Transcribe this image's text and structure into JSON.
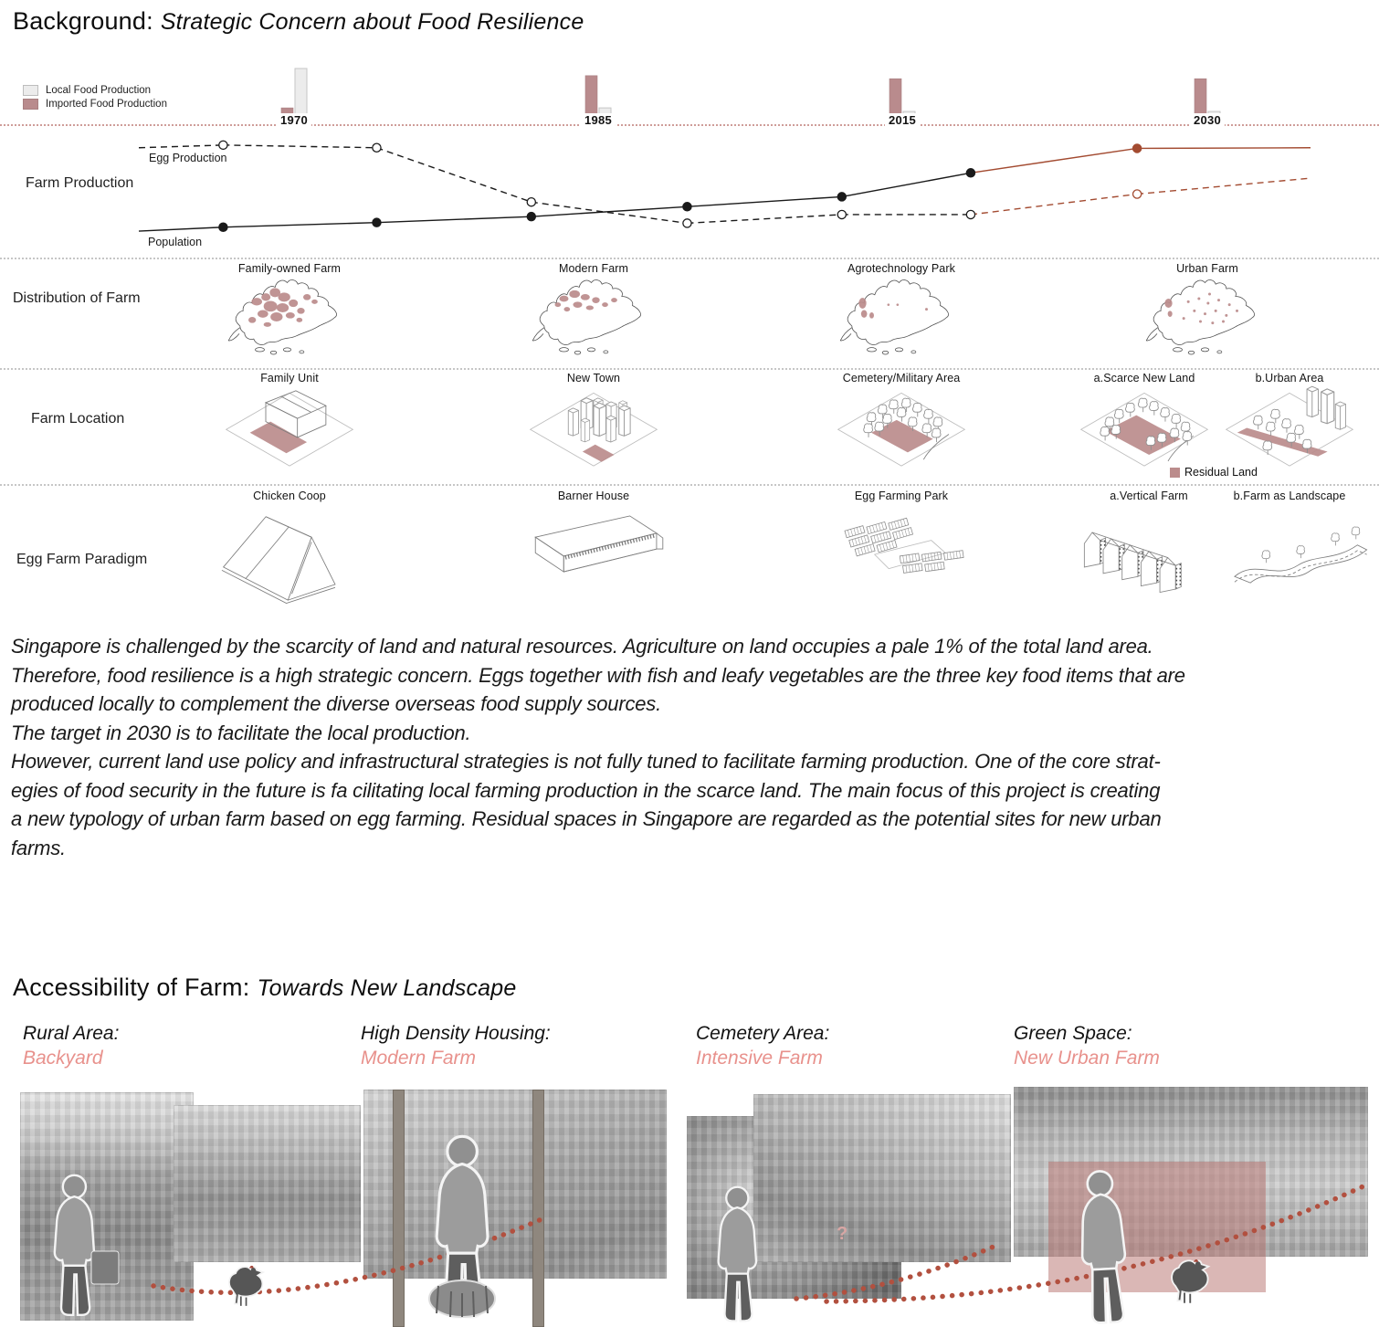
{
  "header": {
    "title_prefix": "Background:",
    "title_italic": "Strategic Concern about Food Resilience"
  },
  "timeline": {
    "legend": [
      {
        "label": "Local Food Production",
        "color": "#ececec"
      },
      {
        "label": "Imported Food Production",
        "color": "#b98b8d"
      }
    ]
  },
  "farm_production": {
    "label": "Farm Production",
    "egg_label": "Egg Production",
    "population_label": "Population"
  },
  "distribution": {
    "label": "Distribution of Farm",
    "items": [
      "Family-owned Farm",
      "Modern Farm",
      "Agrotechnology Park",
      "Urban Farm"
    ]
  },
  "location": {
    "label": "Farm Location",
    "items": [
      "Family Unit",
      "New Town",
      "Cemetery/Military Area",
      "a.Scarce New Land",
      "b.Urban Area"
    ],
    "legend_label": "Residual Land"
  },
  "paradigm": {
    "label": "Egg Farm Paradigm",
    "items": [
      "Chicken Coop",
      "Barner House",
      "Egg Farming Park",
      "a.Vertical Farm",
      "b.Farm as Landscape"
    ]
  },
  "paragraph": {
    "text": "Singapore is challenged by the scarcity of land and natural resources. Agriculture on land occupies a pale 1% of the total land area.\nTherefore, food resilience is a high strategic concern. Eggs together with fish and leafy vegetables are the three key food items that are\nproduced locally to complement the diverse overseas food supply sources.\nThe target in 2030 is to facilitate the local production.\nHowever, current land use policy and infrastructural strategies is not fully tuned to facilitate farming production. One of the core strat-\negies of food security in the future is fa cilitating local farming production in the scarce land. The main focus of this project is creating\na new typology of urban farm based on egg farming. Residual spaces in Singapore are regarded as the potential sites for new urban\nfarms."
  },
  "accessibility": {
    "title_prefix": "Accessibility of Farm:",
    "title_italic": "Towards New Landscape",
    "columns": [
      {
        "area": "Rural Area:",
        "type": "Backyard"
      },
      {
        "area": "High Density Housing:",
        "type": "Modern Farm"
      },
      {
        "area": "Cemetery Area:",
        "type": "Intensive Farm"
      },
      {
        "area": "Green Space:",
        "type": "New Urban Farm"
      }
    ]
  },
  "collage": {
    "question_mark": "?"
  },
  "colors": {
    "accent": "#bb8c8c",
    "accent_text": "#e8918c",
    "projection": "#a34b31",
    "trail": "#b2503f"
  },
  "chart_data": [
    {
      "type": "bar",
      "title": "Local vs Imported Food Production over time",
      "categories": [
        "1970",
        "1985",
        "2015",
        "2030"
      ],
      "series": [
        {
          "name": "Local Food Production",
          "color": "#ececec",
          "values": [
            100,
            23,
            16,
            16
          ]
        },
        {
          "name": "Imported Food Production",
          "color": "#b98b8d",
          "values": [
            23,
            86,
            80,
            80
          ]
        }
      ],
      "ylim": [
        0,
        100
      ],
      "note": "relative bar heights, no numeric axis shown"
    },
    {
      "type": "line",
      "title": "Farm Production",
      "xlabels_years": [
        "1970",
        "1985",
        "2015",
        "2030"
      ],
      "ylim": [
        0,
        100
      ],
      "colors": {
        "historic": "#1a1a1a",
        "projection": "#a34b31"
      },
      "series": [
        {
          "name": "Egg Production",
          "style": "dashed",
          "marker": "open-circle",
          "projection_from_x": 71,
          "x": [
            0,
            7.2,
            20.3,
            33.5,
            46.8,
            60,
            71,
            85.2,
            100
          ],
          "values": [
            85,
            87,
            85,
            44,
            28,
            34.5,
            34.5,
            50,
            62
          ]
        },
        {
          "name": "Population",
          "style": "solid",
          "marker": "filled-circle",
          "projection_from_x": 71,
          "x": [
            0,
            7.2,
            20.3,
            33.5,
            46.8,
            60,
            71,
            85.2,
            100
          ],
          "values": [
            22,
            25,
            28.5,
            33,
            40.5,
            48,
            66,
            84.5,
            85
          ]
        }
      ]
    }
  ]
}
